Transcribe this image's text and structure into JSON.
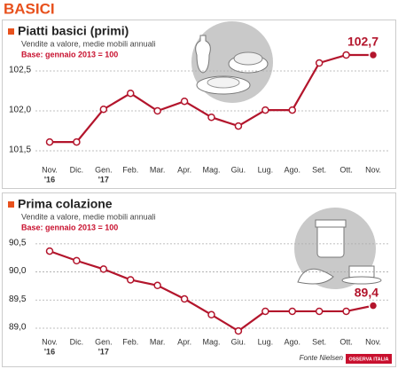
{
  "header": "BASICI",
  "chart_data": [
    {
      "type": "line",
      "title": "Piatti basici (primi)",
      "subtitle": "Vendite a valore, medie mobili annuali",
      "note": "Base: gennaio 2013 = 100",
      "categories": [
        "Nov.",
        "Dic.",
        "Gen.",
        "Feb.",
        "Mar.",
        "Apr.",
        "Mag.",
        "Giu.",
        "Lug.",
        "Ago.",
        "Set.",
        "Ott.",
        "Nov."
      ],
      "x_sublabels": [
        "'16",
        null,
        "'17",
        null,
        null,
        null,
        null,
        null,
        null,
        null,
        null,
        null,
        null
      ],
      "values": [
        101.61,
        101.61,
        102.02,
        102.22,
        102.0,
        102.12,
        101.92,
        101.81,
        102.01,
        102.01,
        102.6,
        102.7,
        102.7
      ],
      "value_labels": [
        null,
        null,
        null,
        null,
        null,
        null,
        null,
        null,
        null,
        null,
        null,
        null,
        "102,7"
      ],
      "color": "#b3152c",
      "ylim": [
        101.4,
        102.8
      ],
      "yticks": [
        {
          "value": 101.5,
          "label": "101,5"
        },
        {
          "value": 102.0,
          "label": "102,0"
        },
        {
          "value": 102.5,
          "label": "102,5"
        }
      ],
      "grid": true
    },
    {
      "type": "line",
      "title": "Prima colazione",
      "subtitle": "Vendite a valore, medie mobili annuali",
      "note": "Base: gennaio 2013 = 100",
      "categories": [
        "Nov.",
        "Dic.",
        "Gen.",
        "Feb.",
        "Mar.",
        "Apr.",
        "Mag.",
        "Giu.",
        "Lug.",
        "Ago.",
        "Set.",
        "Ott.",
        "Nov."
      ],
      "x_sublabels": [
        "'16",
        null,
        "'17",
        null,
        null,
        null,
        null,
        null,
        null,
        null,
        null,
        null,
        null
      ],
      "values": [
        90.37,
        90.2,
        90.05,
        89.86,
        89.76,
        89.52,
        89.24,
        88.95,
        89.3,
        89.3,
        89.3,
        89.3,
        89.4
      ],
      "value_labels": [
        null,
        null,
        null,
        null,
        null,
        null,
        null,
        null,
        null,
        null,
        null,
        null,
        "89,4"
      ],
      "color": "#b3152c",
      "ylim": [
        88.85,
        90.75
      ],
      "yticks": [
        {
          "value": 89.0,
          "label": "89,0"
        },
        {
          "value": 89.5,
          "label": "89,5"
        },
        {
          "value": 90.0,
          "label": "90,0"
        },
        {
          "value": 90.5,
          "label": "90,5"
        }
      ],
      "grid": true
    }
  ],
  "footer": {
    "source": "Fonte Nielsen",
    "logo": "OSSERVA ITALIA"
  }
}
